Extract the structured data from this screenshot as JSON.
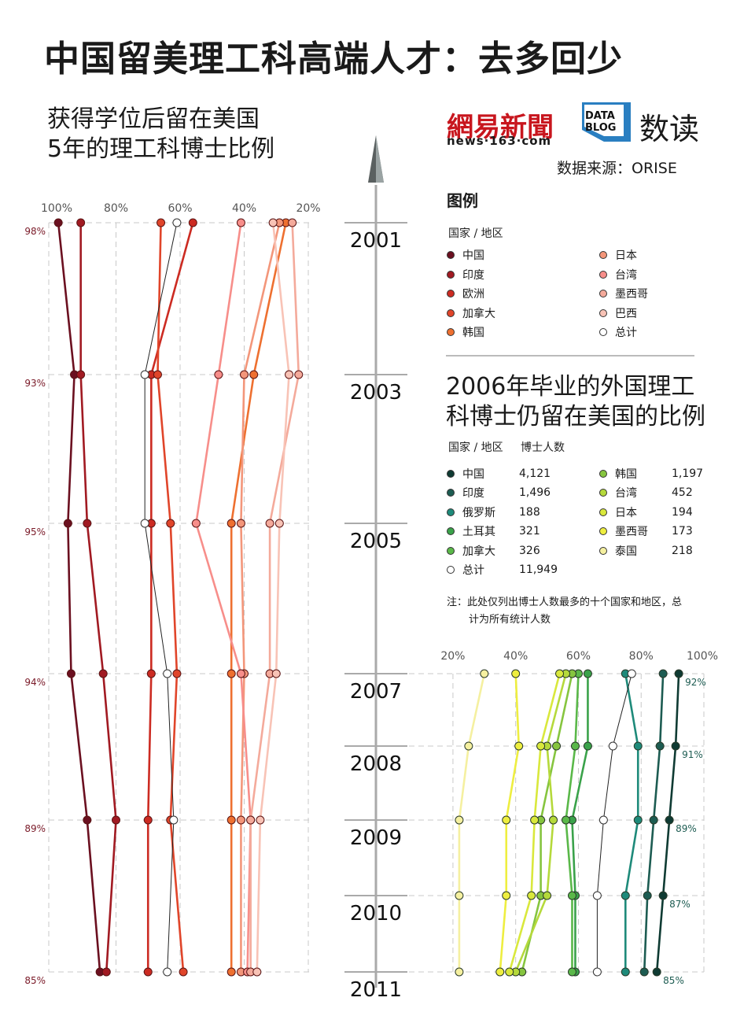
{
  "title": "中国留美理工科高端人才：去多回少",
  "left_subtitle": [
    "获得学位后留在美国",
    "5年的理工科博士比例"
  ],
  "right_subtitle": [
    "2006年毕业的外国理工",
    "科博士仍留在美国的比例"
  ],
  "brand": {
    "netease": "網易新聞",
    "url": "news·163·com",
    "datablog": "DATA BLOG",
    "datablog_cn": "数读"
  },
  "source": "数据来源：ORISE",
  "legend": {
    "title": "图例",
    "header": "国家 / 地区",
    "col1": [
      "中国",
      "印度",
      "欧洲",
      "加拿大",
      "韩国"
    ],
    "col2": [
      "日本",
      "台湾",
      "墨西哥",
      "巴西",
      "总计"
    ]
  },
  "table": {
    "header_country": "国家 / 地区",
    "header_count": "博士人数",
    "rows_left": [
      {
        "name": "中国",
        "count": "4,121"
      },
      {
        "name": "印度",
        "count": "1,496"
      },
      {
        "name": "俄罗斯",
        "count": "188"
      },
      {
        "name": "土耳其",
        "count": "321"
      },
      {
        "name": "加拿大",
        "count": "326"
      },
      {
        "name": "总计",
        "count": "11,949"
      }
    ],
    "rows_right": [
      {
        "name": "韩国",
        "count": "1,197"
      },
      {
        "name": "台湾",
        "count": "452"
      },
      {
        "name": "日本",
        "count": "194"
      },
      {
        "name": "墨西哥",
        "count": "173"
      },
      {
        "name": "泰国",
        "count": "218"
      }
    ]
  },
  "note": [
    "注：此处仅列出博士人数最多的十个国家和地区，总",
    "计为所有统计人数"
  ],
  "years": [
    "2001",
    "2003",
    "2005",
    "2007",
    "2008",
    "2009",
    "2010",
    "2011"
  ],
  "chart_data": [
    {
      "type": "line",
      "title": "获得学位后留在美国5年的理工科博士比例",
      "x_axis": "percent, reversed",
      "x_ticks": [
        "100%",
        "80%",
        "60%",
        "40%",
        "20%"
      ],
      "xlim": [
        100,
        20
      ],
      "years": [
        2001,
        2003,
        2005,
        2007,
        2009,
        2011
      ],
      "labels": [
        "98%",
        "93%",
        "95%",
        "94%",
        "89%",
        "85%"
      ],
      "series": [
        {
          "name": "中国",
          "color": "#6b1020",
          "values": [
            98,
            93,
            95,
            94,
            89,
            85
          ]
        },
        {
          "name": "印度",
          "color": "#a11a22",
          "values": [
            91,
            91,
            89,
            84,
            80,
            83
          ]
        },
        {
          "name": "欧洲",
          "color": "#cc2b22",
          "values": [
            56,
            69,
            69,
            69,
            70,
            70
          ]
        },
        {
          "name": "加拿大",
          "color": "#e0452a",
          "values": [
            66,
            67,
            63,
            61,
            63,
            59
          ]
        },
        {
          "name": "韩国",
          "color": "#ee7030",
          "values": [
            27,
            37,
            44,
            44,
            44,
            44
          ]
        },
        {
          "name": "日本",
          "color": "#f3967a",
          "values": [
            29,
            40,
            41,
            40,
            41,
            41
          ]
        },
        {
          "name": "台湾",
          "color": "#f78e8a",
          "values": [
            41,
            48,
            55,
            41,
            38,
            39
          ]
        },
        {
          "name": "墨西哥",
          "color": "#f4aa9b",
          "values": [
            25,
            23,
            32,
            32,
            38,
            38
          ]
        },
        {
          "name": "巴西",
          "color": "#f8c3b6",
          "values": [
            31,
            26,
            29,
            30,
            35,
            36
          ]
        },
        {
          "name": "总计",
          "color": "#222222",
          "hollow": true,
          "values": [
            61,
            71,
            71,
            64,
            62,
            64
          ]
        }
      ]
    },
    {
      "type": "line",
      "title": "2006年毕业的外国理工科博士仍留在美国的比例",
      "x_ticks": [
        "20%",
        "40%",
        "60%",
        "80%",
        "100%"
      ],
      "xlim": [
        14,
        100
      ],
      "years": [
        2007,
        2008,
        2009,
        2010,
        2011
      ],
      "labels": [
        "92%",
        "91%",
        "89%",
        "87%",
        "85%"
      ],
      "series": [
        {
          "name": "中国",
          "color": "#0f3b33",
          "values": [
            92,
            91,
            89,
            87,
            85
          ]
        },
        {
          "name": "印度",
          "color": "#1d5c52",
          "values": [
            87,
            86,
            84,
            82,
            81
          ]
        },
        {
          "name": "俄罗斯",
          "color": "#1e8a7a",
          "values": [
            75,
            79,
            79,
            75,
            75
          ]
        },
        {
          "name": "土耳其",
          "color": "#3aa24a",
          "values": [
            63,
            63,
            58,
            59,
            59
          ]
        },
        {
          "name": "加拿大",
          "color": "#5ab849",
          "values": [
            60,
            59,
            56,
            58,
            58
          ]
        },
        {
          "name": "韩国",
          "color": "#86c53f",
          "values": [
            58,
            53,
            48,
            48,
            42
          ]
        },
        {
          "name": "台湾",
          "color": "#b5d93b",
          "values": [
            56,
            50,
            52,
            50,
            40
          ]
        },
        {
          "name": "日本",
          "color": "#d9e83c",
          "values": [
            54,
            48,
            46,
            45,
            38
          ]
        },
        {
          "name": "墨西哥",
          "color": "#eeee40",
          "values": [
            40,
            41,
            37,
            37,
            35
          ]
        },
        {
          "name": "泰国",
          "color": "#f5f0a0",
          "values": [
            30,
            25,
            22,
            22,
            22
          ]
        },
        {
          "name": "总计",
          "color": "#222222",
          "hollow": true,
          "values": [
            77,
            71,
            68,
            66,
            66
          ]
        }
      ]
    }
  ]
}
